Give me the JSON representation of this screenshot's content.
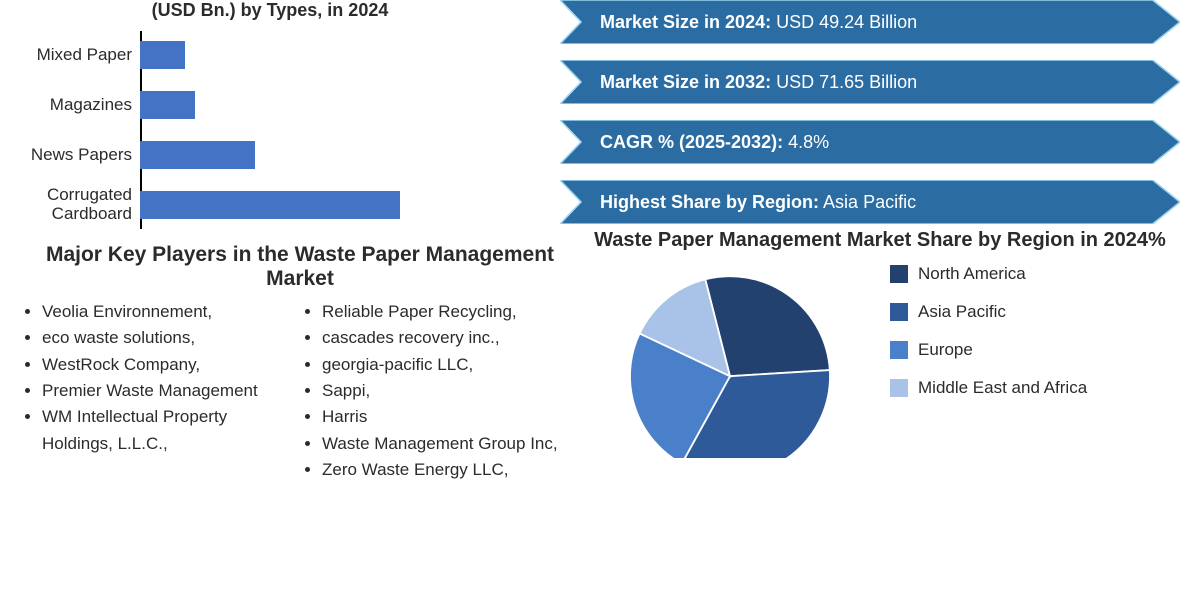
{
  "bar_chart": {
    "type": "bar-horizontal",
    "title": "(USD Bn.) by Types, in 2024",
    "title_fontsize": 18,
    "bar_color": "#4472c4",
    "axis_color": "#000000",
    "label_fontsize": 17,
    "max_value": 30,
    "categories": [
      {
        "label": "Mixed Paper",
        "value": 4.5
      },
      {
        "label": "Magazines",
        "value": 5.5
      },
      {
        "label": "News Papers",
        "value": 11.5
      },
      {
        "label": "Corrugated Cardboard",
        "value": 26
      }
    ]
  },
  "banners": [
    {
      "label_bold": "Market Size in 2024:",
      "label_rest": " USD 49.24 Billion",
      "fill": "#2b6ca3"
    },
    {
      "label_bold": "Market Size in 2032:",
      "label_rest": " USD 71.65 Billion",
      "fill": "#2b6ca3"
    },
    {
      "label_bold": "CAGR % (2025-2032):",
      "label_rest": " 4.8%",
      "fill": "#2b6ca3"
    },
    {
      "label_bold": "Highest Share by Region:",
      "label_rest": " Asia Pacific",
      "fill": "#2b6ca3"
    }
  ],
  "banner_style": {
    "outline": "#9fd6f0",
    "text_color": "#ffffff",
    "fontsize": 18,
    "height": 44
  },
  "players": {
    "title": "Major Key Players in the Waste Paper Management Market",
    "col1": [
      "Veolia Environnement,",
      "eco waste solutions,",
      "WestRock Company,",
      "Premier Waste Management",
      "WM Intellectual Property Holdings, L.L.C.,"
    ],
    "col2": [
      "Reliable Paper Recycling,",
      "cascades recovery inc.,",
      "georgia-pacific LLC,",
      "Sappi,",
      "Harris",
      "Waste Management Group Inc,",
      "Zero Waste Energy LLC,"
    ],
    "fontsize": 17
  },
  "pie_chart": {
    "type": "pie",
    "title": "Waste Paper Management Market Share by Region in 2024%",
    "title_fontsize": 20,
    "slices": [
      {
        "label": "North America",
        "value": 28,
        "color": "#22416e"
      },
      {
        "label": "Asia Pacific",
        "value": 34,
        "color": "#2e5a99"
      },
      {
        "label": "Europe",
        "value": 24,
        "color": "#4a7fc9"
      },
      {
        "label": "Middle East and Africa",
        "value": 14,
        "color": "#a9c3e8"
      }
    ],
    "stroke": "#ffffff",
    "stroke_width": 2,
    "radius": 110,
    "legend_fontsize": 17
  },
  "colors": {
    "background": "#ffffff",
    "text": "#2b2b2b"
  }
}
